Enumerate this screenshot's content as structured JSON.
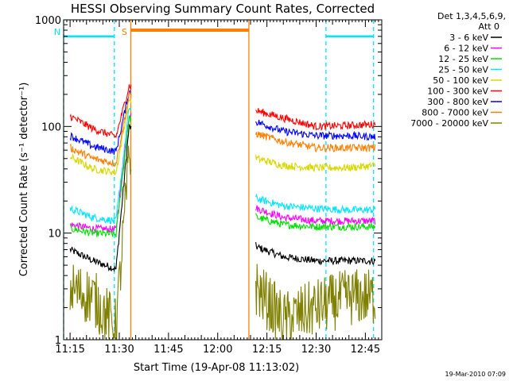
{
  "chart_data": {
    "type": "line",
    "title": "HESSI Observing Summary Count Rates, Corrected",
    "xlabel": "Start Time (19-Apr-08 11:13:02)",
    "ylabel": "Corrected Count Rate (s⁻¹ detector⁻¹)",
    "x_ticks": [
      "11:15",
      "11:30",
      "11:45",
      "12:00",
      "12:15",
      "12:30",
      "12:45"
    ],
    "y_ticks": [
      "1",
      "10",
      "100",
      "1000"
    ],
    "y_scale": "log",
    "ylim": [
      1,
      1000
    ],
    "xlim": [
      "11:13:02",
      "12:50:00"
    ],
    "grid": false,
    "legend_header": [
      "Det 1,3,4,5,6,9,",
      "Att 0"
    ],
    "legend_placement": "right",
    "footer": "19-Mar-2010 07:09",
    "flags": [
      {
        "label": "N",
        "color": "#00e5ff",
        "style": "dashed",
        "x_start": "11:13:02",
        "x_end": "11:28:30",
        "level": 700
      },
      {
        "label": "S",
        "color": "#ff8000",
        "style": "solid",
        "x_start": "11:33:30",
        "x_end": "12:09:30",
        "level": 800
      },
      {
        "label": "",
        "color": "#00e5ff",
        "style": "dashed",
        "x_start": "12:33:00",
        "x_end": "12:47:30",
        "level": 700
      }
    ],
    "series": [
      {
        "name": "3 - 6 keV",
        "color": "#000000",
        "values": [
          {
            "x": "11:15",
            "y": 7
          },
          {
            "x": "11:22",
            "y": 5.5
          },
          {
            "x": "11:29",
            "y": 4.6
          },
          {
            "x": "11:33",
            "y": 100
          },
          {
            "x": "12:12",
            "y": 7.4
          },
          {
            "x": "12:20",
            "y": 6
          },
          {
            "x": "12:30",
            "y": 5.5
          },
          {
            "x": "12:40",
            "y": 5.5
          },
          {
            "x": "12:48",
            "y": 5.5
          }
        ]
      },
      {
        "name": "6 - 12 keV",
        "color": "#ff00ff",
        "values": [
          {
            "x": "11:15",
            "y": 12
          },
          {
            "x": "11:22",
            "y": 11
          },
          {
            "x": "11:29",
            "y": 10.8
          },
          {
            "x": "11:33",
            "y": 130
          },
          {
            "x": "12:12",
            "y": 17
          },
          {
            "x": "12:20",
            "y": 14
          },
          {
            "x": "12:30",
            "y": 13
          },
          {
            "x": "12:40",
            "y": 13
          },
          {
            "x": "12:48",
            "y": 13
          }
        ]
      },
      {
        "name": "12 - 25 keV",
        "color": "#00e000",
        "values": [
          {
            "x": "11:15",
            "y": 11
          },
          {
            "x": "11:22",
            "y": 10
          },
          {
            "x": "11:29",
            "y": 9.7
          },
          {
            "x": "11:33",
            "y": 120
          },
          {
            "x": "12:12",
            "y": 14
          },
          {
            "x": "12:20",
            "y": 12
          },
          {
            "x": "12:30",
            "y": 11.5
          },
          {
            "x": "12:40",
            "y": 11.5
          },
          {
            "x": "12:48",
            "y": 11.5
          }
        ]
      },
      {
        "name": "25 - 50 keV",
        "color": "#00e5ff",
        "values": [
          {
            "x": "11:15",
            "y": 17
          },
          {
            "x": "11:22",
            "y": 14
          },
          {
            "x": "11:29",
            "y": 13
          },
          {
            "x": "11:33",
            "y": 150
          },
          {
            "x": "12:12",
            "y": 21
          },
          {
            "x": "12:20",
            "y": 18
          },
          {
            "x": "12:30",
            "y": 17
          },
          {
            "x": "12:40",
            "y": 16.5
          },
          {
            "x": "12:48",
            "y": 16.5
          }
        ]
      },
      {
        "name": "50 - 100 keV",
        "color": "#d8d800",
        "values": [
          {
            "x": "11:15",
            "y": 52
          },
          {
            "x": "11:22",
            "y": 40
          },
          {
            "x": "11:29",
            "y": 37
          },
          {
            "x": "11:33",
            "y": 180
          },
          {
            "x": "12:12",
            "y": 50
          },
          {
            "x": "12:20",
            "y": 43
          },
          {
            "x": "12:30",
            "y": 41
          },
          {
            "x": "12:40",
            "y": 41
          },
          {
            "x": "12:48",
            "y": 43
          }
        ]
      },
      {
        "name": "100 - 300 keV",
        "color": "#ff0000",
        "values": [
          {
            "x": "11:15",
            "y": 125
          },
          {
            "x": "11:22",
            "y": 95
          },
          {
            "x": "11:29",
            "y": 80
          },
          {
            "x": "11:33",
            "y": 240
          },
          {
            "x": "12:12",
            "y": 140
          },
          {
            "x": "12:20",
            "y": 120
          },
          {
            "x": "12:30",
            "y": 100
          },
          {
            "x": "12:40",
            "y": 102
          },
          {
            "x": "12:48",
            "y": 105
          }
        ]
      },
      {
        "name": "300 - 800 keV",
        "color": "#0000ff",
        "values": [
          {
            "x": "11:15",
            "y": 82
          },
          {
            "x": "11:22",
            "y": 65
          },
          {
            "x": "11:29",
            "y": 58
          },
          {
            "x": "11:33",
            "y": 210
          },
          {
            "x": "12:12",
            "y": 110
          },
          {
            "x": "12:20",
            "y": 90
          },
          {
            "x": "12:30",
            "y": 82
          },
          {
            "x": "12:40",
            "y": 82
          },
          {
            "x": "12:48",
            "y": 80
          }
        ]
      },
      {
        "name": "800 - 7000 keV",
        "color": "#ff7f00",
        "values": [
          {
            "x": "11:15",
            "y": 63
          },
          {
            "x": "11:22",
            "y": 50
          },
          {
            "x": "11:29",
            "y": 45
          },
          {
            "x": "11:33",
            "y": 195
          },
          {
            "x": "12:12",
            "y": 85
          },
          {
            "x": "12:20",
            "y": 72
          },
          {
            "x": "12:30",
            "y": 63
          },
          {
            "x": "12:40",
            "y": 63
          },
          {
            "x": "12:48",
            "y": 63
          }
        ]
      },
      {
        "name": "7000 - 20000 keV",
        "color": "#808000",
        "values": [
          {
            "x": "11:15",
            "y": 3
          },
          {
            "x": "11:22",
            "y": 2.5
          },
          {
            "x": "11:29",
            "y": 1.3
          },
          {
            "x": "11:33",
            "y": 50
          },
          {
            "x": "12:12",
            "y": 3
          },
          {
            "x": "12:20",
            "y": 1.5
          },
          {
            "x": "12:30",
            "y": 2
          },
          {
            "x": "12:40",
            "y": 2.5
          },
          {
            "x": "12:48",
            "y": 2.5
          }
        ]
      }
    ]
  }
}
